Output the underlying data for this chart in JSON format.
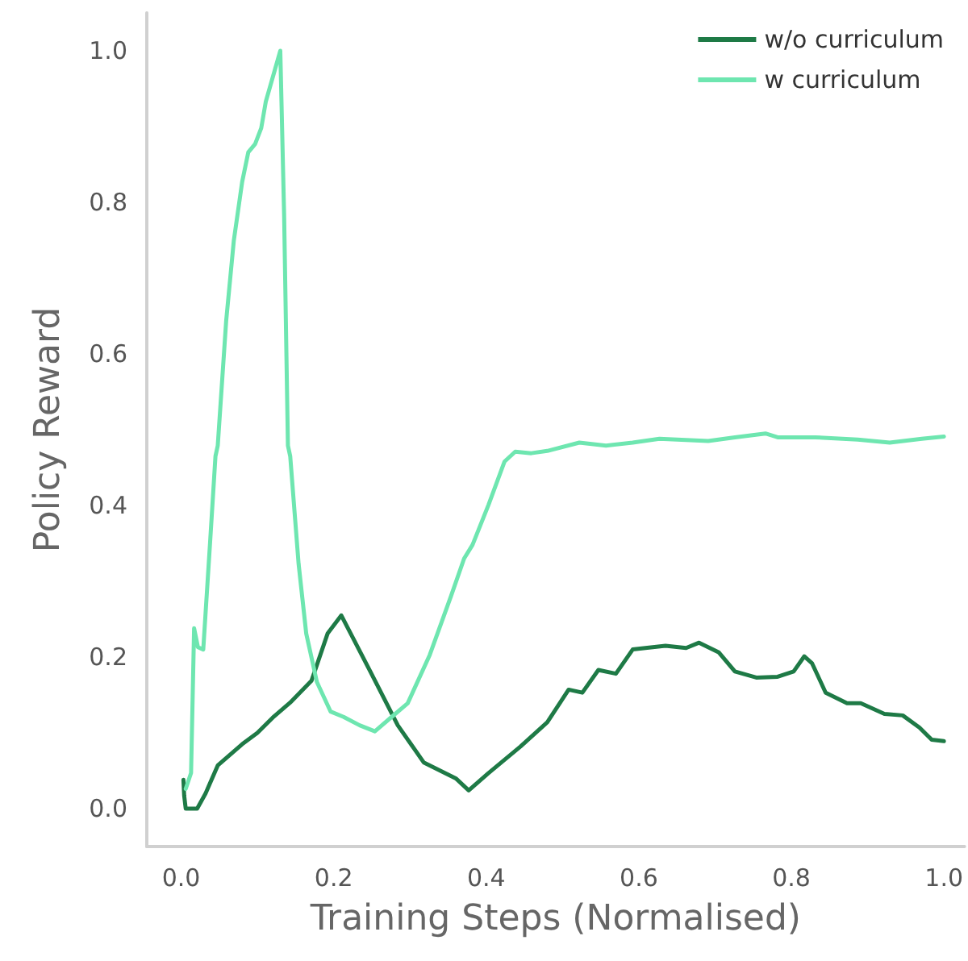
{
  "chart_data": {
    "type": "line",
    "xlabel": "Training Steps (Normalised)",
    "ylabel": "Policy Reward",
    "xlim": [
      -0.045,
      1.027
    ],
    "ylim": [
      -0.05,
      1.05
    ],
    "xticks": [
      {
        "value": 0,
        "label": "0.0"
      },
      {
        "value": 0.2,
        "label": "0.2"
      },
      {
        "value": 0.4,
        "label": "0.4"
      },
      {
        "value": 0.6,
        "label": "0.6"
      },
      {
        "value": 0.8,
        "label": "0.8"
      },
      {
        "value": 1,
        "label": "1.0"
      }
    ],
    "yticks": [
      {
        "value": 0,
        "label": "0.0"
      },
      {
        "value": 0.2,
        "label": "0.2"
      },
      {
        "value": 0.4,
        "label": "0.4"
      },
      {
        "value": 0.6,
        "label": "0.6"
      },
      {
        "value": 0.8,
        "label": "0.8"
      },
      {
        "value": 1,
        "label": "1.0"
      }
    ],
    "grid": false,
    "legend": "top right",
    "line_style": "solid",
    "marker": "none",
    "series": [
      {
        "name": "w/o curriculum",
        "color": "#1e7a46",
        "x": [
          0.003,
          0.004,
          0.006,
          0.021,
          0.032,
          0.048,
          0.08,
          0.1,
          0.12,
          0.143,
          0.171,
          0.192,
          0.21,
          0.248,
          0.284,
          0.318,
          0.36,
          0.377,
          0.403,
          0.445,
          0.48,
          0.508,
          0.526,
          0.547,
          0.57,
          0.592,
          0.635,
          0.662,
          0.679,
          0.705,
          0.726,
          0.754,
          0.782,
          0.803,
          0.817,
          0.827,
          0.845,
          0.873,
          0.891,
          0.922,
          0.946,
          0.968,
          0.984,
          1.0
        ],
        "values": [
          0.038,
          0.017,
          0.0,
          0.0,
          0.02,
          0.057,
          0.085,
          0.1,
          0.12,
          0.14,
          0.169,
          0.231,
          0.255,
          0.181,
          0.11,
          0.061,
          0.04,
          0.024,
          0.047,
          0.082,
          0.114,
          0.157,
          0.153,
          0.183,
          0.178,
          0.21,
          0.215,
          0.212,
          0.219,
          0.206,
          0.181,
          0.173,
          0.174,
          0.181,
          0.201,
          0.192,
          0.153,
          0.139,
          0.139,
          0.125,
          0.123,
          0.107,
          0.091,
          0.089
        ]
      },
      {
        "name": "w curriculum",
        "color": "#6ee6b0",
        "x": [
          0.006,
          0.013,
          0.017,
          0.022,
          0.029,
          0.038,
          0.045,
          0.048,
          0.059,
          0.069,
          0.08,
          0.088,
          0.097,
          0.105,
          0.111,
          0.13,
          0.135,
          0.14,
          0.143,
          0.154,
          0.164,
          0.178,
          0.196,
          0.213,
          0.234,
          0.254,
          0.276,
          0.297,
          0.326,
          0.354,
          0.371,
          0.382,
          0.403,
          0.424,
          0.438,
          0.459,
          0.48,
          0.522,
          0.557,
          0.592,
          0.627,
          0.691,
          0.726,
          0.766,
          0.782,
          0.831,
          0.887,
          0.929,
          0.971,
          1.0
        ],
        "values": [
          0.026,
          0.047,
          0.238,
          0.213,
          0.21,
          0.352,
          0.465,
          0.479,
          0.643,
          0.749,
          0.827,
          0.866,
          0.877,
          0.898,
          0.933,
          1.0,
          0.784,
          0.479,
          0.465,
          0.323,
          0.231,
          0.167,
          0.128,
          0.121,
          0.11,
          0.102,
          0.121,
          0.139,
          0.203,
          0.281,
          0.33,
          0.348,
          0.401,
          0.458,
          0.471,
          0.469,
          0.472,
          0.483,
          0.479,
          0.483,
          0.488,
          0.485,
          0.49,
          0.495,
          0.49,
          0.49,
          0.487,
          0.483,
          0.488,
          0.491
        ]
      }
    ]
  }
}
